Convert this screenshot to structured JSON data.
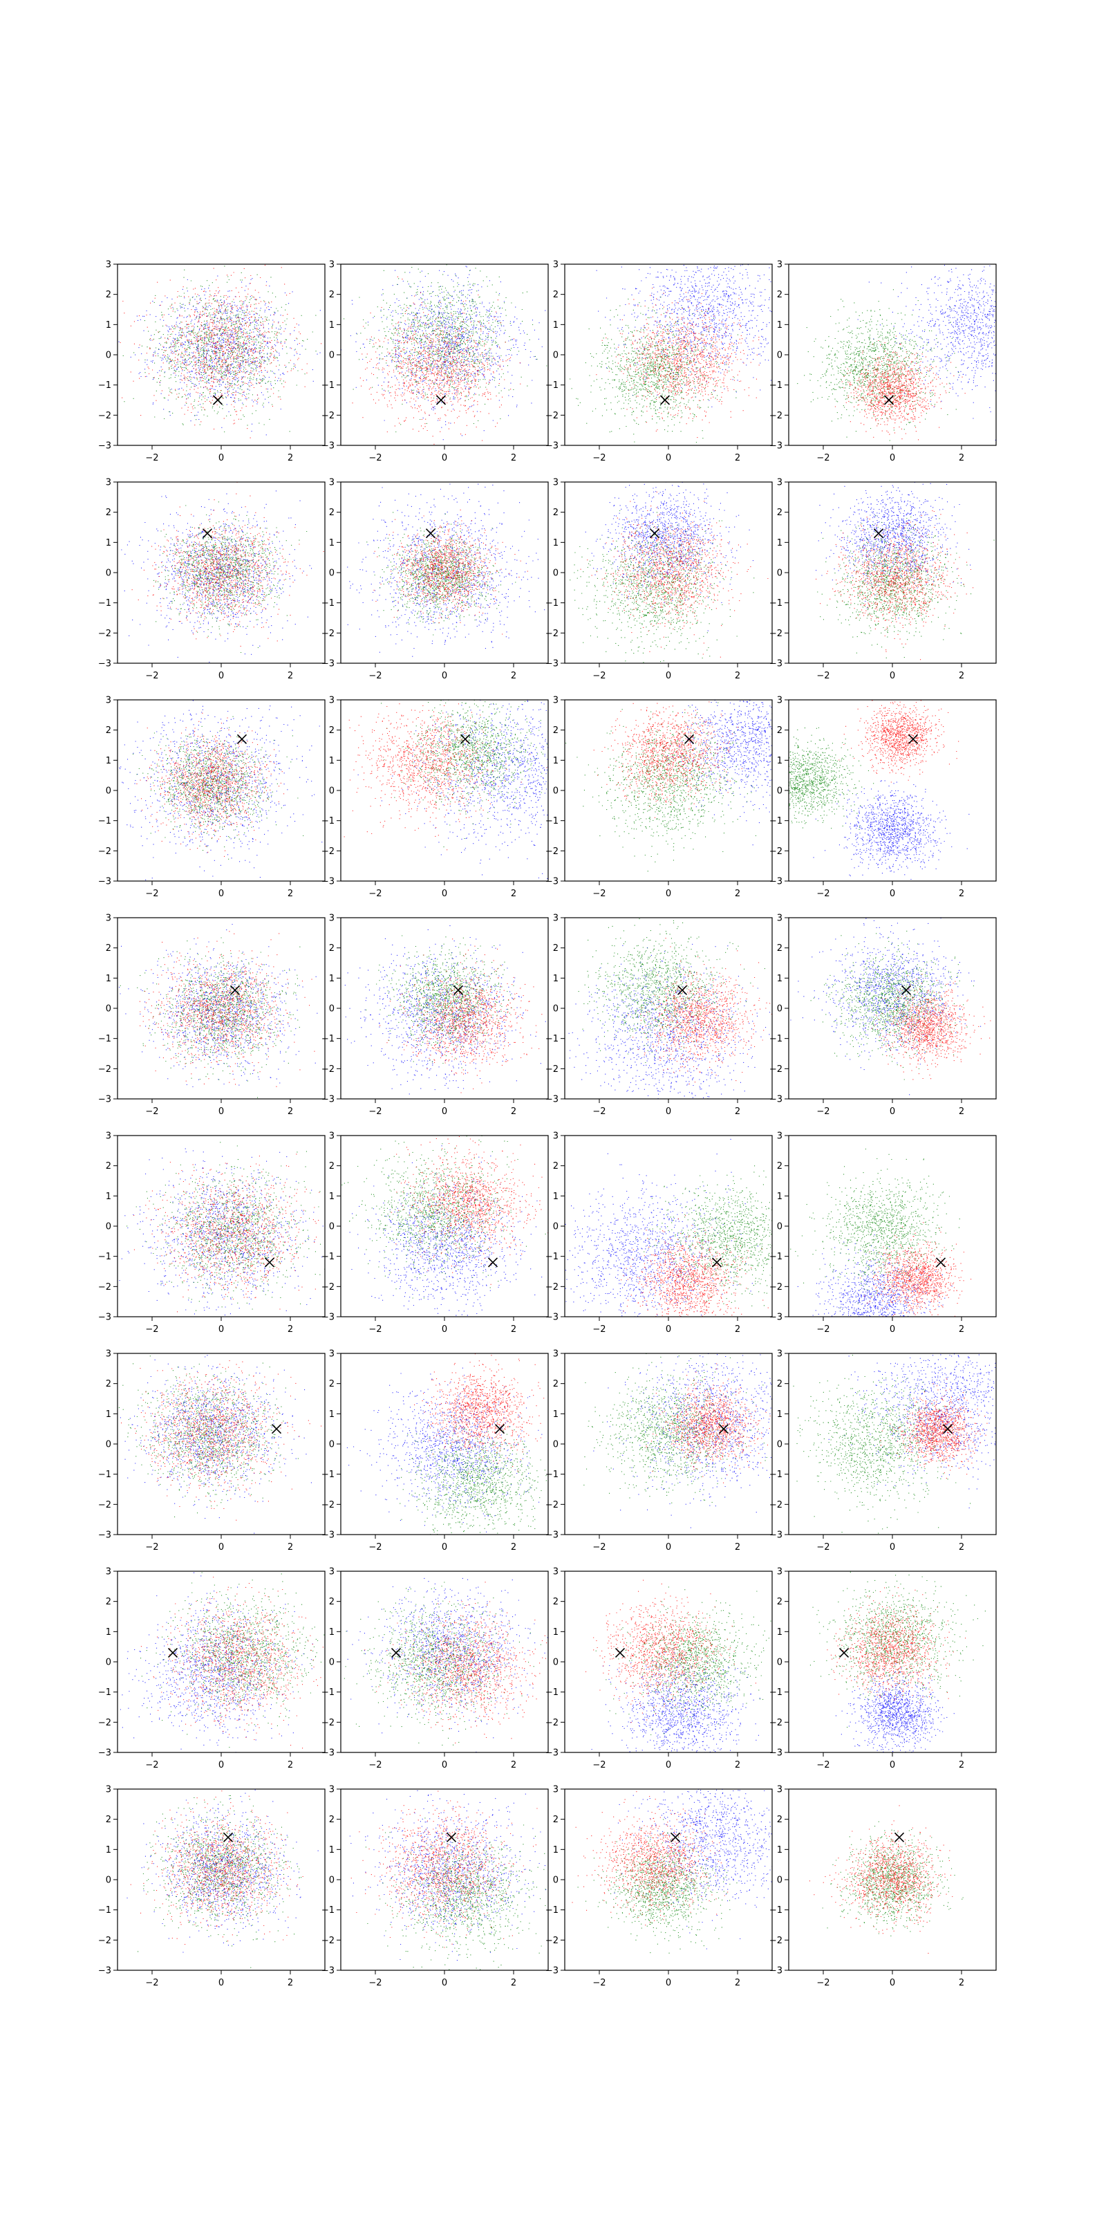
{
  "chart_data": {
    "type": "scatter",
    "layout": {
      "rows": 8,
      "cols": 4
    },
    "xlim": [
      -3,
      3
    ],
    "ylim": [
      -3,
      3
    ],
    "xticks": [
      -2,
      0,
      2
    ],
    "yticks": [
      -3,
      -2,
      -1,
      0,
      1,
      2,
      3
    ],
    "xtick_labels": [
      "−2",
      "0",
      "2"
    ],
    "ytick_labels": [
      "−3",
      "−2",
      "−1",
      "0",
      "1",
      "2",
      "3"
    ],
    "grid": false,
    "legend": "none",
    "points_per_series": 1100,
    "series_colors": {
      "red": "#ff0000",
      "green": "#008000",
      "blue": "#0000ff"
    },
    "marker": {
      "shape": "x",
      "color": "#000000"
    },
    "rows": [
      {
        "marker": [
          -0.1,
          -1.5
        ],
        "panels": [
          {
            "red": [
              0.0,
              0.2,
              0.95
            ],
            "green": [
              0.0,
              0.2,
              0.95
            ],
            "blue": [
              0.0,
              0.2,
              0.95
            ]
          },
          {
            "red": [
              -0.2,
              -0.4,
              0.85
            ],
            "green": [
              0.0,
              0.6,
              0.95
            ],
            "blue": [
              0.1,
              0.4,
              1.0
            ]
          },
          {
            "red": [
              0.4,
              -0.2,
              0.8
            ],
            "green": [
              -0.4,
              -0.5,
              0.8
            ],
            "blue": [
              1.0,
              1.4,
              1.0
            ]
          },
          {
            "red": [
              0.0,
              -1.2,
              0.55
            ],
            "green": [
              -0.5,
              -0.4,
              0.8
            ],
            "blue": [
              2.5,
              1.0,
              1.0
            ]
          }
        ]
      },
      {
        "marker": [
          -0.4,
          1.3
        ],
        "panels": [
          {
            "red": [
              0.0,
              0.0,
              0.8
            ],
            "green": [
              0.0,
              0.0,
              0.75
            ],
            "blue": [
              -0.1,
              0.0,
              0.95
            ]
          },
          {
            "red": [
              0.0,
              0.1,
              0.65
            ],
            "green": [
              -0.1,
              -0.1,
              0.65
            ],
            "blue": [
              0.0,
              0.0,
              1.1
            ]
          },
          {
            "red": [
              0.1,
              0.1,
              0.8
            ],
            "green": [
              -0.4,
              -0.5,
              0.9
            ],
            "blue": [
              -0.1,
              1.2,
              0.8
            ]
          },
          {
            "red": [
              0.1,
              -0.2,
              0.75
            ],
            "green": [
              0.0,
              -0.4,
              0.8
            ],
            "blue": [
              0.0,
              1.2,
              0.75
            ]
          }
        ]
      },
      {
        "marker": [
          0.6,
          1.7
        ],
        "panels": [
          {
            "red": [
              -0.3,
              0.2,
              0.75
            ],
            "green": [
              -0.3,
              0.2,
              0.75
            ],
            "blue": [
              -0.2,
              0.2,
              1.1
            ]
          },
          {
            "red": [
              -0.5,
              0.9,
              0.85
            ],
            "green": [
              0.8,
              1.3,
              0.8
            ],
            "blue": [
              1.8,
              0.6,
              1.2
            ]
          },
          {
            "red": [
              0.0,
              1.2,
              0.7
            ],
            "green": [
              0.0,
              0.2,
              0.9
            ],
            "blue": [
              2.3,
              1.6,
              0.9
            ]
          },
          {
            "red": [
              0.2,
              1.8,
              0.5
            ],
            "green": [
              -2.5,
              0.3,
              0.6
            ],
            "blue": [
              0.0,
              -1.3,
              0.6
            ]
          }
        ]
      },
      {
        "marker": [
          0.4,
          0.6
        ],
        "panels": [
          {
            "red": [
              0.0,
              -0.1,
              0.85
            ],
            "green": [
              0.0,
              -0.1,
              0.85
            ],
            "blue": [
              0.0,
              -0.1,
              0.95
            ]
          },
          {
            "red": [
              0.6,
              -0.4,
              0.75
            ],
            "green": [
              0.1,
              0.3,
              0.7
            ],
            "blue": [
              -0.1,
              -0.2,
              1.0
            ]
          },
          {
            "red": [
              0.9,
              -0.4,
              0.7
            ],
            "green": [
              -0.3,
              0.6,
              0.85
            ],
            "blue": [
              -0.1,
              -0.9,
              1.1
            ]
          },
          {
            "red": [
              1.0,
              -0.6,
              0.55
            ],
            "green": [
              0.0,
              0.2,
              0.75
            ],
            "blue": [
              0.0,
              0.5,
              0.9
            ]
          }
        ]
      },
      {
        "marker": [
          1.4,
          -1.2
        ],
        "panels": [
          {
            "red": [
              0.3,
              -0.2,
              0.95
            ],
            "green": [
              0.3,
              -0.2,
              0.95
            ],
            "blue": [
              0.1,
              -0.3,
              1.05
            ]
          },
          {
            "red": [
              0.7,
              0.8,
              0.8
            ],
            "green": [
              -0.2,
              0.5,
              0.9
            ],
            "blue": [
              0.0,
              -0.7,
              0.95
            ]
          },
          {
            "red": [
              0.6,
              -1.8,
              0.65
            ],
            "green": [
              1.8,
              -0.4,
              0.85
            ],
            "blue": [
              -0.8,
              -1.0,
              1.1
            ]
          },
          {
            "red": [
              0.7,
              -1.7,
              0.5
            ],
            "green": [
              -0.3,
              -0.1,
              0.8
            ],
            "blue": [
              -0.5,
              -2.6,
              0.75
            ]
          }
        ]
      },
      {
        "marker": [
          1.6,
          0.5
        ],
        "panels": [
          {
            "red": [
              -0.3,
              0.4,
              0.9
            ],
            "green": [
              -0.3,
              0.4,
              0.9
            ],
            "blue": [
              -0.3,
              0.4,
              0.95
            ]
          },
          {
            "red": [
              1.1,
              1.1,
              0.65
            ],
            "green": [
              1.0,
              -1.3,
              0.85
            ],
            "blue": [
              0.2,
              -0.2,
              1.0
            ]
          },
          {
            "red": [
              1.2,
              0.6,
              0.6
            ],
            "green": [
              0.0,
              0.4,
              0.9
            ],
            "blue": [
              1.3,
              0.7,
              1.1
            ]
          },
          {
            "red": [
              1.3,
              0.4,
              0.5
            ],
            "green": [
              -0.5,
              0.0,
              0.9
            ],
            "blue": [
              1.5,
              1.2,
              1.0
            ]
          }
        ]
      },
      {
        "marker": [
          -1.4,
          0.3
        ],
        "panels": [
          {
            "red": [
              0.5,
              0.0,
              0.9
            ],
            "green": [
              0.6,
              0.3,
              0.9
            ],
            "blue": [
              -0.3,
              -0.3,
              1.0
            ]
          },
          {
            "red": [
              0.7,
              -0.2,
              0.8
            ],
            "green": [
              -0.2,
              0.0,
              0.9
            ],
            "blue": [
              0.2,
              0.4,
              1.0
            ]
          },
          {
            "red": [
              -0.2,
              0.4,
              0.75
            ],
            "green": [
              0.8,
              0.0,
              0.8
            ],
            "blue": [
              0.4,
              -1.6,
              0.8
            ]
          },
          {
            "red": [
              -0.1,
              0.4,
              0.65
            ],
            "green": [
              0.0,
              0.8,
              0.85
            ],
            "blue": [
              0.1,
              -1.7,
              0.55
            ]
          }
        ]
      },
      {
        "marker": [
          0.2,
          1.4
        ],
        "panels": [
          {
            "red": [
              0.0,
              0.3,
              0.85
            ],
            "green": [
              0.0,
              0.3,
              0.85
            ],
            "blue": [
              0.0,
              0.3,
              0.9
            ]
          },
          {
            "red": [
              0.0,
              0.4,
              0.85
            ],
            "green": [
              0.6,
              -0.5,
              0.9
            ],
            "blue": [
              0.2,
              0.3,
              1.0
            ]
          },
          {
            "red": [
              -0.4,
              0.6,
              0.7
            ],
            "green": [
              -0.2,
              -0.3,
              0.7
            ],
            "blue": [
              1.4,
              1.3,
              1.0
            ]
          },
          {
            "red": [
              0.0,
              0.1,
              0.65
            ],
            "green": [
              0.0,
              -0.1,
              0.65
            ],
            "blue": [
              0.0,
              0.1,
              0.0
            ]
          }
        ]
      }
    ]
  }
}
